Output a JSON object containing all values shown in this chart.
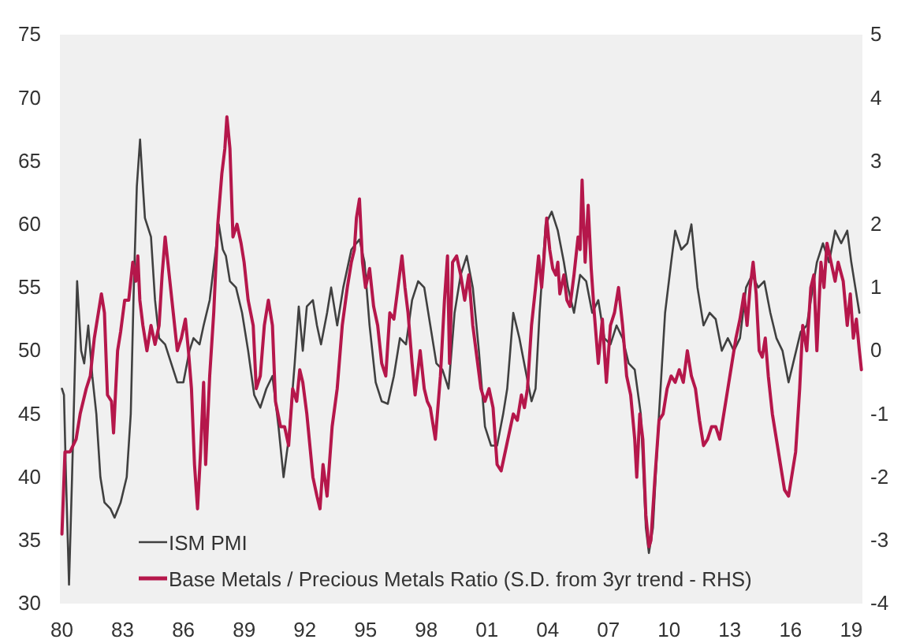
{
  "chart_data": {
    "type": "line",
    "xlim": [
      1979.9,
      2019.55
    ],
    "xticks": [
      {
        "value": 1980,
        "label": "80"
      },
      {
        "value": 1983,
        "label": "83"
      },
      {
        "value": 1986,
        "label": "86"
      },
      {
        "value": 1989,
        "label": "89"
      },
      {
        "value": 1992,
        "label": "92"
      },
      {
        "value": 1995,
        "label": "95"
      },
      {
        "value": 1998,
        "label": "98"
      },
      {
        "value": 2001,
        "label": "01"
      },
      {
        "value": 2004,
        "label": "04"
      },
      {
        "value": 2007,
        "label": "07"
      },
      {
        "value": 2010,
        "label": "10"
      },
      {
        "value": 2013,
        "label": "13"
      },
      {
        "value": 2016,
        "label": "16"
      },
      {
        "value": 2019,
        "label": "19"
      }
    ],
    "ylim": [
      30,
      75
    ],
    "yticks": [
      30,
      35,
      40,
      45,
      50,
      55,
      60,
      65,
      70,
      75
    ],
    "y2lim": [
      -4,
      5
    ],
    "y2ticks": [
      -4,
      -3,
      -2,
      -1,
      0,
      1,
      2,
      3,
      4,
      5
    ],
    "legend": "bottom left",
    "grid": false,
    "series": [
      {
        "name": "ISM PMI",
        "color": "#404040",
        "x": [
          1980.0,
          1980.1,
          1980.2,
          1980.35,
          1980.5,
          1980.75,
          1980.95,
          1981.1,
          1981.3,
          1981.5,
          1981.7,
          1981.9,
          1982.1,
          1982.4,
          1982.6,
          1982.9,
          1983.2,
          1983.4,
          1983.55,
          1983.7,
          1983.86,
          1984.0,
          1984.1,
          1984.4,
          1984.6,
          1984.8,
          1985.1,
          1985.4,
          1985.7,
          1986.0,
          1986.3,
          1986.5,
          1986.8,
          1987.0,
          1987.3,
          1987.6,
          1987.75,
          1987.95,
          1988.1,
          1988.3,
          1988.6,
          1988.9,
          1989.2,
          1989.5,
          1989.8,
          1990.1,
          1990.4,
          1990.7,
          1990.95,
          1991.2,
          1991.5,
          1991.7,
          1991.9,
          1992.1,
          1992.4,
          1992.6,
          1992.8,
          1993.1,
          1993.3,
          1993.6,
          1993.9,
          1994.3,
          1994.7,
          1994.95,
          1995.2,
          1995.5,
          1995.8,
          1996.1,
          1996.4,
          1996.7,
          1997.0,
          1997.3,
          1997.6,
          1997.9,
          1998.2,
          1998.5,
          1998.8,
          1999.1,
          1999.4,
          1999.7,
          2000.0,
          2000.3,
          2000.6,
          2000.9,
          2001.2,
          2001.5,
          2001.8,
          2002.0,
          2002.3,
          2002.6,
          2002.9,
          2003.2,
          2003.4,
          2003.6,
          2003.9,
          2004.2,
          2004.5,
          2004.8,
          2005.0,
          2005.3,
          2005.6,
          2005.9,
          2006.2,
          2006.5,
          2006.8,
          2007.1,
          2007.4,
          2007.7,
          2008.0,
          2008.3,
          2008.6,
          2008.85,
          2009.0,
          2009.2,
          2009.5,
          2009.8,
          2010.1,
          2010.3,
          2010.6,
          2010.9,
          2011.1,
          2011.4,
          2011.7,
          2012.0,
          2012.3,
          2012.6,
          2012.9,
          2013.2,
          2013.5,
          2013.8,
          2014.1,
          2014.4,
          2014.7,
          2015.0,
          2015.3,
          2015.6,
          2015.9,
          2016.2,
          2016.5,
          2016.8,
          2017.1,
          2017.3,
          2017.6,
          2017.9,
          2018.2,
          2018.5,
          2018.8,
          2019.0,
          2019.2,
          2019.4
        ],
        "values": [
          47,
          46.5,
          40,
          31.5,
          40,
          55.5,
          50,
          49,
          52,
          48,
          45,
          40,
          38,
          37.5,
          36.8,
          38,
          40,
          45,
          55,
          63,
          66.7,
          63,
          60.5,
          59,
          54,
          51,
          50.5,
          49,
          47.5,
          47.5,
          50,
          51,
          50.5,
          52,
          54,
          58,
          60,
          58,
          57.5,
          55.5,
          55,
          53,
          50,
          46.5,
          45.5,
          47,
          48,
          44,
          40,
          43,
          49,
          53.5,
          50,
          53.5,
          54,
          52,
          50.5,
          53,
          55,
          52,
          55,
          58,
          58.8,
          57,
          52,
          47.5,
          46,
          45.8,
          48,
          51,
          50.5,
          54,
          55.5,
          55,
          52,
          49,
          48.5,
          47,
          53,
          56,
          57.5,
          55,
          50,
          44,
          42.5,
          42.5,
          45,
          47,
          53,
          51,
          48.5,
          46,
          47,
          53,
          60,
          61,
          59.5,
          57,
          55,
          53,
          56,
          55.5,
          53,
          54,
          51,
          50.5,
          52,
          51,
          49,
          48.5,
          45,
          36,
          34,
          36,
          45,
          53,
          57,
          59.5,
          58,
          58.5,
          60,
          55,
          52,
          53,
          52.5,
          50,
          51,
          50,
          51,
          55,
          56,
          55,
          55.5,
          53,
          51,
          50,
          47.5,
          49.5,
          51.5,
          52,
          55,
          57,
          58.5,
          57,
          59.5,
          58.5,
          59.5,
          57,
          55,
          53
        ]
      },
      {
        "name": "Base Metals / Precious Metals Ratio (S.D. from 3yr trend - RHS)",
        "color": "#b5174b",
        "axis": "y2",
        "x": [
          1980.0,
          1980.15,
          1980.4,
          1980.7,
          1980.9,
          1981.2,
          1981.4,
          1981.6,
          1981.8,
          1981.95,
          1982.1,
          1982.25,
          1982.45,
          1982.55,
          1982.75,
          1982.9,
          1983.1,
          1983.3,
          1983.5,
          1983.65,
          1983.75,
          1983.85,
          1984.0,
          1984.2,
          1984.4,
          1984.6,
          1984.8,
          1984.95,
          1985.1,
          1985.3,
          1985.5,
          1985.7,
          1985.9,
          1986.1,
          1986.25,
          1986.4,
          1986.55,
          1986.7,
          1986.85,
          1987.0,
          1987.1,
          1987.3,
          1987.5,
          1987.7,
          1987.9,
          1988.05,
          1988.15,
          1988.3,
          1988.45,
          1988.65,
          1988.85,
          1989.0,
          1989.2,
          1989.45,
          1989.6,
          1989.8,
          1990.0,
          1990.2,
          1990.4,
          1990.55,
          1990.8,
          1991.0,
          1991.2,
          1991.4,
          1991.6,
          1991.75,
          1991.9,
          1992.1,
          1992.4,
          1992.6,
          1992.75,
          1992.9,
          1993.1,
          1993.35,
          1993.6,
          1993.85,
          1994.1,
          1994.3,
          1994.45,
          1994.55,
          1994.7,
          1994.85,
          1995.0,
          1995.2,
          1995.4,
          1995.6,
          1995.8,
          1996.0,
          1996.2,
          1996.4,
          1996.6,
          1996.8,
          1996.95,
          1997.1,
          1997.3,
          1997.45,
          1997.7,
          1997.9,
          1998.05,
          1998.2,
          1998.45,
          1998.7,
          1998.9,
          1999.05,
          1999.15,
          1999.3,
          1999.5,
          1999.7,
          1999.9,
          2000.1,
          2000.3,
          2000.5,
          2000.7,
          2000.9,
          2001.1,
          2001.3,
          2001.5,
          2001.7,
          2001.9,
          2002.1,
          2002.3,
          2002.5,
          2002.7,
          2002.85,
          2003.0,
          2003.2,
          2003.4,
          2003.55,
          2003.7,
          2003.8,
          2003.95,
          2004.1,
          2004.25,
          2004.4,
          2004.5,
          2004.6,
          2004.8,
          2004.95,
          2005.1,
          2005.3,
          2005.5,
          2005.6,
          2005.7,
          2005.85,
          2006.0,
          2006.15,
          2006.3,
          2006.5,
          2006.7,
          2006.9,
          2007.1,
          2007.3,
          2007.5,
          2007.7,
          2007.9,
          2008.1,
          2008.3,
          2008.4,
          2008.55,
          2008.7,
          2008.85,
          2009.0,
          2009.1,
          2009.3,
          2009.5,
          2009.7,
          2009.9,
          2010.1,
          2010.3,
          2010.5,
          2010.7,
          2010.9,
          2011.1,
          2011.3,
          2011.5,
          2011.7,
          2011.9,
          2012.1,
          2012.3,
          2012.5,
          2012.7,
          2012.9,
          2013.1,
          2013.3,
          2013.5,
          2013.7,
          2013.85,
          2014.0,
          2014.15,
          2014.3,
          2014.45,
          2014.6,
          2014.75,
          2014.9,
          2015.1,
          2015.3,
          2015.5,
          2015.7,
          2015.9,
          2016.05,
          2016.25,
          2016.45,
          2016.6,
          2016.8,
          2017.0,
          2017.15,
          2017.3,
          2017.5,
          2017.65,
          2017.8,
          2018.0,
          2018.2,
          2018.35,
          2018.6,
          2018.8,
          2018.95,
          2019.1,
          2019.25,
          2019.4,
          2019.5
        ],
        "values": [
          -2.9,
          -1.6,
          -1.6,
          -1.4,
          -1,
          -0.6,
          -0.4,
          0.2,
          0.6,
          0.9,
          0.6,
          -0.7,
          -0.8,
          -1.3,
          0,
          0.3,
          0.8,
          0.8,
          1.4,
          1.1,
          1.5,
          0.8,
          0.4,
          0,
          0.4,
          0.1,
          0.4,
          1.2,
          1.8,
          1.2,
          0.6,
          0,
          0.2,
          0.5,
          0,
          -0.6,
          -1.8,
          -2.5,
          -1.6,
          -0.5,
          -1.8,
          -0.4,
          0.6,
          2,
          2.8,
          3.2,
          3.7,
          3.2,
          1.8,
          2,
          1.7,
          1.4,
          0.8,
          0.4,
          -0.6,
          -0.4,
          0.4,
          0.8,
          0.4,
          -0.8,
          -1.2,
          -1.2,
          -1.5,
          -0.6,
          -0.8,
          -0.3,
          -0.5,
          -1,
          -2,
          -2.3,
          -2.5,
          -1.8,
          -2.3,
          -1.2,
          -0.6,
          0.4,
          1,
          1.4,
          1.6,
          2.1,
          2.4,
          1.4,
          1,
          1.3,
          0.7,
          0.4,
          -0.2,
          -0.4,
          0.6,
          0.5,
          1,
          1.5,
          1,
          0.6,
          -0.2,
          -0.7,
          0,
          -0.6,
          -0.8,
          -0.9,
          -1.4,
          -0.4,
          0.8,
          1.5,
          -0.2,
          1.4,
          1.5,
          1.2,
          0.8,
          1.2,
          0.4,
          -0.1,
          -0.6,
          -0.8,
          -0.6,
          -0.9,
          -1.8,
          -1.9,
          -1.6,
          -1.3,
          -1,
          -1.1,
          -0.7,
          -0.9,
          -0.6,
          0.4,
          1,
          1.5,
          1,
          1.4,
          2.1,
          1.6,
          1.3,
          1.2,
          1.4,
          0.9,
          1.2,
          0.8,
          0.7,
          1.2,
          1.8,
          1.6,
          2.7,
          1.4,
          2.3,
          1.3,
          0.6,
          -0.2,
          0.5,
          -0.5,
          0.4,
          0.6,
          1,
          0.4,
          -0.4,
          -0.7,
          -1.4,
          -2,
          -1,
          -1.4,
          -2.6,
          -3.1,
          -3,
          -2,
          -1.1,
          -1,
          -0.6,
          -0.4,
          -0.5,
          -0.3,
          -0.5,
          0,
          -0.4,
          -0.6,
          -1.1,
          -1.5,
          -1.4,
          -1.2,
          -1.2,
          -1.4,
          -1,
          -0.6,
          -0.2,
          0.2,
          0.5,
          0.9,
          0.4,
          1,
          1.4,
          0.9,
          0,
          -0.1,
          0.2,
          -0.4,
          -1,
          -1.4,
          -1.8,
          -2.2,
          -2.3,
          -2,
          -1.6,
          -0.6,
          0.4,
          0,
          1,
          1.2,
          0,
          1.4,
          1,
          1.7,
          1.4,
          1.1,
          1.4,
          1.1,
          0.4,
          0.9,
          0.2,
          0.5,
          0,
          -0.3
        ]
      }
    ]
  }
}
